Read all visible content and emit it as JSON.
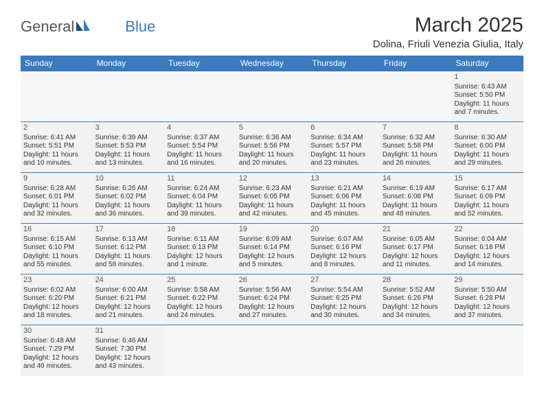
{
  "logo": {
    "text1": "General",
    "text2": "Blue"
  },
  "title": "March 2025",
  "location": "Dolina, Friuli Venezia Giulia, Italy",
  "colors": {
    "header_bg": "#3a7abd",
    "header_text": "#ffffff",
    "cell_bg": "#f2f2f2",
    "cell_border": "#3a7abd",
    "body_text": "#333333",
    "logo_gray": "#555555",
    "logo_blue": "#3a7abd",
    "background": "#ffffff"
  },
  "typography": {
    "title_fontsize": 30,
    "location_fontsize": 15,
    "dayheader_fontsize": 12,
    "cell_fontsize": 10,
    "font_family": "Arial"
  },
  "day_headers": [
    "Sunday",
    "Monday",
    "Tuesday",
    "Wednesday",
    "Thursday",
    "Friday",
    "Saturday"
  ],
  "weeks": [
    [
      null,
      null,
      null,
      null,
      null,
      null,
      {
        "d": "1",
        "sr": "Sunrise: 6:43 AM",
        "ss": "Sunset: 5:50 PM",
        "dl1": "Daylight: 11 hours",
        "dl2": "and 7 minutes."
      }
    ],
    [
      {
        "d": "2",
        "sr": "Sunrise: 6:41 AM",
        "ss": "Sunset: 5:51 PM",
        "dl1": "Daylight: 11 hours",
        "dl2": "and 10 minutes."
      },
      {
        "d": "3",
        "sr": "Sunrise: 6:39 AM",
        "ss": "Sunset: 5:53 PM",
        "dl1": "Daylight: 11 hours",
        "dl2": "and 13 minutes."
      },
      {
        "d": "4",
        "sr": "Sunrise: 6:37 AM",
        "ss": "Sunset: 5:54 PM",
        "dl1": "Daylight: 11 hours",
        "dl2": "and 16 minutes."
      },
      {
        "d": "5",
        "sr": "Sunrise: 6:36 AM",
        "ss": "Sunset: 5:56 PM",
        "dl1": "Daylight: 11 hours",
        "dl2": "and 20 minutes."
      },
      {
        "d": "6",
        "sr": "Sunrise: 6:34 AM",
        "ss": "Sunset: 5:57 PM",
        "dl1": "Daylight: 11 hours",
        "dl2": "and 23 minutes."
      },
      {
        "d": "7",
        "sr": "Sunrise: 6:32 AM",
        "ss": "Sunset: 5:58 PM",
        "dl1": "Daylight: 11 hours",
        "dl2": "and 26 minutes."
      },
      {
        "d": "8",
        "sr": "Sunrise: 6:30 AM",
        "ss": "Sunset: 6:00 PM",
        "dl1": "Daylight: 11 hours",
        "dl2": "and 29 minutes."
      }
    ],
    [
      {
        "d": "9",
        "sr": "Sunrise: 6:28 AM",
        "ss": "Sunset: 6:01 PM",
        "dl1": "Daylight: 11 hours",
        "dl2": "and 32 minutes."
      },
      {
        "d": "10",
        "sr": "Sunrise: 6:26 AM",
        "ss": "Sunset: 6:02 PM",
        "dl1": "Daylight: 11 hours",
        "dl2": "and 36 minutes."
      },
      {
        "d": "11",
        "sr": "Sunrise: 6:24 AM",
        "ss": "Sunset: 6:04 PM",
        "dl1": "Daylight: 11 hours",
        "dl2": "and 39 minutes."
      },
      {
        "d": "12",
        "sr": "Sunrise: 6:23 AM",
        "ss": "Sunset: 6:05 PM",
        "dl1": "Daylight: 11 hours",
        "dl2": "and 42 minutes."
      },
      {
        "d": "13",
        "sr": "Sunrise: 6:21 AM",
        "ss": "Sunset: 6:06 PM",
        "dl1": "Daylight: 11 hours",
        "dl2": "and 45 minutes."
      },
      {
        "d": "14",
        "sr": "Sunrise: 6:19 AM",
        "ss": "Sunset: 6:08 PM",
        "dl1": "Daylight: 11 hours",
        "dl2": "and 48 minutes."
      },
      {
        "d": "15",
        "sr": "Sunrise: 6:17 AM",
        "ss": "Sunset: 6:09 PM",
        "dl1": "Daylight: 11 hours",
        "dl2": "and 52 minutes."
      }
    ],
    [
      {
        "d": "16",
        "sr": "Sunrise: 6:15 AM",
        "ss": "Sunset: 6:10 PM",
        "dl1": "Daylight: 11 hours",
        "dl2": "and 55 minutes."
      },
      {
        "d": "17",
        "sr": "Sunrise: 6:13 AM",
        "ss": "Sunset: 6:12 PM",
        "dl1": "Daylight: 11 hours",
        "dl2": "and 58 minutes."
      },
      {
        "d": "18",
        "sr": "Sunrise: 6:11 AM",
        "ss": "Sunset: 6:13 PM",
        "dl1": "Daylight: 12 hours",
        "dl2": "and 1 minute."
      },
      {
        "d": "19",
        "sr": "Sunrise: 6:09 AM",
        "ss": "Sunset: 6:14 PM",
        "dl1": "Daylight: 12 hours",
        "dl2": "and 5 minutes."
      },
      {
        "d": "20",
        "sr": "Sunrise: 6:07 AM",
        "ss": "Sunset: 6:16 PM",
        "dl1": "Daylight: 12 hours",
        "dl2": "and 8 minutes."
      },
      {
        "d": "21",
        "sr": "Sunrise: 6:05 AM",
        "ss": "Sunset: 6:17 PM",
        "dl1": "Daylight: 12 hours",
        "dl2": "and 11 minutes."
      },
      {
        "d": "22",
        "sr": "Sunrise: 6:04 AM",
        "ss": "Sunset: 6:18 PM",
        "dl1": "Daylight: 12 hours",
        "dl2": "and 14 minutes."
      }
    ],
    [
      {
        "d": "23",
        "sr": "Sunrise: 6:02 AM",
        "ss": "Sunset: 6:20 PM",
        "dl1": "Daylight: 12 hours",
        "dl2": "and 18 minutes."
      },
      {
        "d": "24",
        "sr": "Sunrise: 6:00 AM",
        "ss": "Sunset: 6:21 PM",
        "dl1": "Daylight: 12 hours",
        "dl2": "and 21 minutes."
      },
      {
        "d": "25",
        "sr": "Sunrise: 5:58 AM",
        "ss": "Sunset: 6:22 PM",
        "dl1": "Daylight: 12 hours",
        "dl2": "and 24 minutes."
      },
      {
        "d": "26",
        "sr": "Sunrise: 5:56 AM",
        "ss": "Sunset: 6:24 PM",
        "dl1": "Daylight: 12 hours",
        "dl2": "and 27 minutes."
      },
      {
        "d": "27",
        "sr": "Sunrise: 5:54 AM",
        "ss": "Sunset: 6:25 PM",
        "dl1": "Daylight: 12 hours",
        "dl2": "and 30 minutes."
      },
      {
        "d": "28",
        "sr": "Sunrise: 5:52 AM",
        "ss": "Sunset: 6:26 PM",
        "dl1": "Daylight: 12 hours",
        "dl2": "and 34 minutes."
      },
      {
        "d": "29",
        "sr": "Sunrise: 5:50 AM",
        "ss": "Sunset: 6:28 PM",
        "dl1": "Daylight: 12 hours",
        "dl2": "and 37 minutes."
      }
    ],
    [
      {
        "d": "30",
        "sr": "Sunrise: 6:48 AM",
        "ss": "Sunset: 7:29 PM",
        "dl1": "Daylight: 12 hours",
        "dl2": "and 40 minutes."
      },
      {
        "d": "31",
        "sr": "Sunrise: 6:46 AM",
        "ss": "Sunset: 7:30 PM",
        "dl1": "Daylight: 12 hours",
        "dl2": "and 43 minutes."
      },
      null,
      null,
      null,
      null,
      null
    ]
  ]
}
